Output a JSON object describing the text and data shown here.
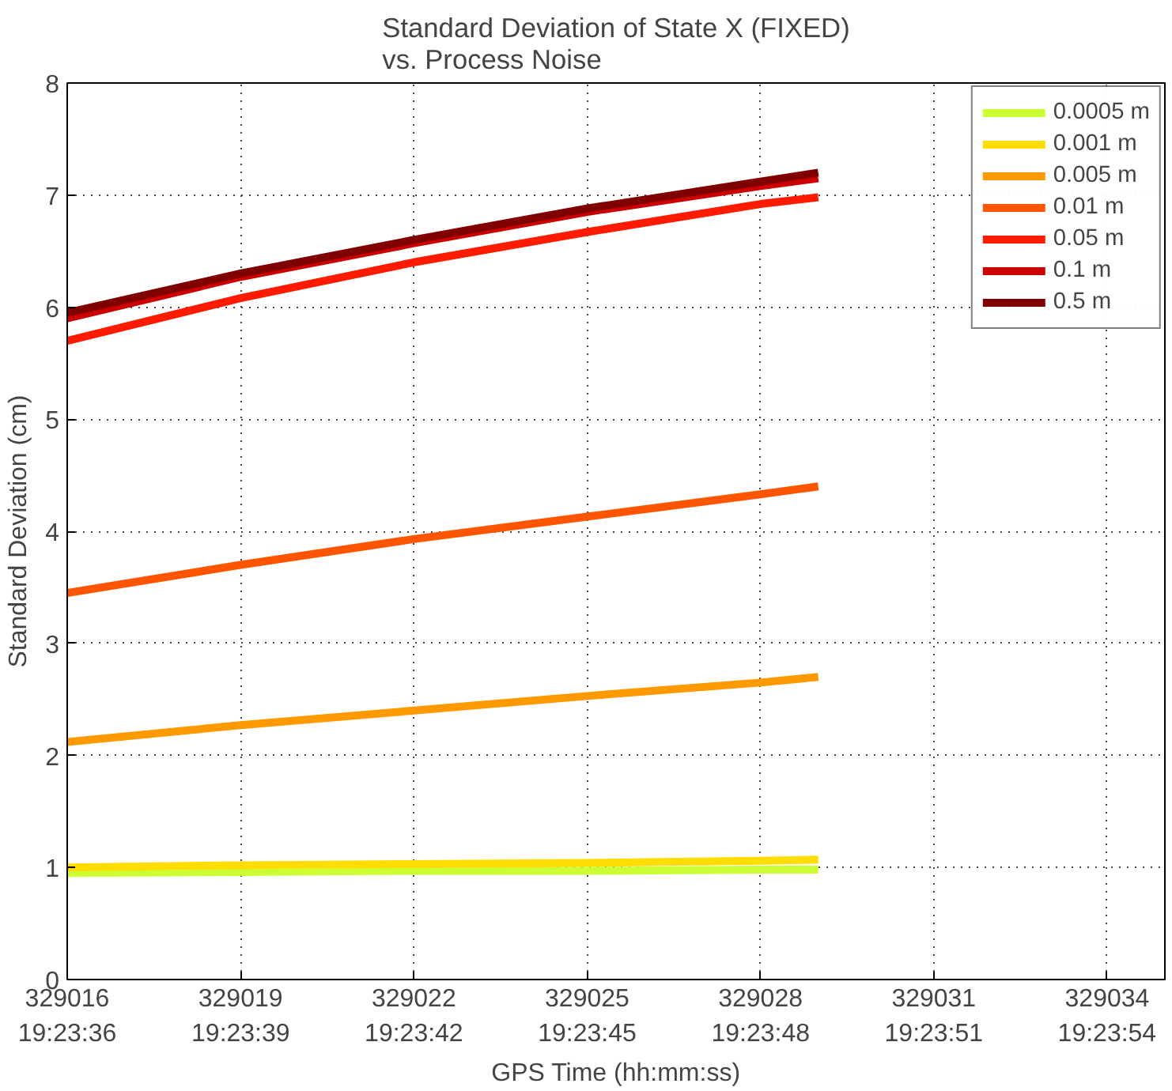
{
  "chart_data": {
    "type": "line",
    "title": "Standard Deviation of State X (FIXED)\nvs. Process Noise",
    "xlabel": "GPS Time (hh:mm:ss)",
    "ylabel": "Standard Deviation (cm)",
    "x": [
      329016,
      329019,
      329022,
      329025,
      329028,
      329029
    ],
    "series": [
      {
        "name": "0.0005 m",
        "color": "#ccff33",
        "values": [
          0.95,
          0.96,
          0.97,
          0.97,
          0.98,
          0.98
        ]
      },
      {
        "name": "0.001 m",
        "color": "#ffdd00",
        "values": [
          1.0,
          1.02,
          1.03,
          1.04,
          1.06,
          1.07
        ]
      },
      {
        "name": "0.005 m",
        "color": "#ff9900",
        "values": [
          2.12,
          2.27,
          2.4,
          2.53,
          2.65,
          2.7
        ]
      },
      {
        "name": "0.01 m",
        "color": "#ff5500",
        "values": [
          3.45,
          3.7,
          3.93,
          4.13,
          4.33,
          4.4
        ]
      },
      {
        "name": "0.05 m",
        "color": "#ff1a00",
        "values": [
          5.7,
          6.08,
          6.4,
          6.67,
          6.92,
          6.98
        ]
      },
      {
        "name": "0.1 m",
        "color": "#cc0000",
        "values": [
          5.9,
          6.27,
          6.57,
          6.85,
          7.08,
          7.15
        ]
      },
      {
        "name": "0.5 m",
        "color": "#800000",
        "values": [
          5.95,
          6.3,
          6.6,
          6.88,
          7.12,
          7.2
        ]
      }
    ],
    "xlim": [
      329016,
      329035
    ],
    "ylim": [
      0,
      8
    ],
    "xticks": [
      329016,
      329019,
      329022,
      329025,
      329028,
      329031,
      329034
    ],
    "x2lim": [
      19.393333,
      19.398611
    ],
    "x2ticks": [
      {
        "value": 19.393333,
        "label": "19:23:36"
      },
      {
        "value": 19.394167,
        "label": "19:23:39"
      },
      {
        "value": 19.395,
        "label": "19:23:42"
      },
      {
        "value": 19.395833,
        "label": "19:23:45"
      },
      {
        "value": 19.396667,
        "label": "19:23:48"
      },
      {
        "value": 19.3975,
        "label": "19:23:51"
      },
      {
        "value": 19.398333,
        "label": "19:23:54"
      }
    ],
    "yticks": [
      0,
      1,
      2,
      3,
      4,
      5,
      6,
      7,
      8
    ],
    "grid": true,
    "legend": "top right",
    "line_style": "solid",
    "marker": "none"
  }
}
